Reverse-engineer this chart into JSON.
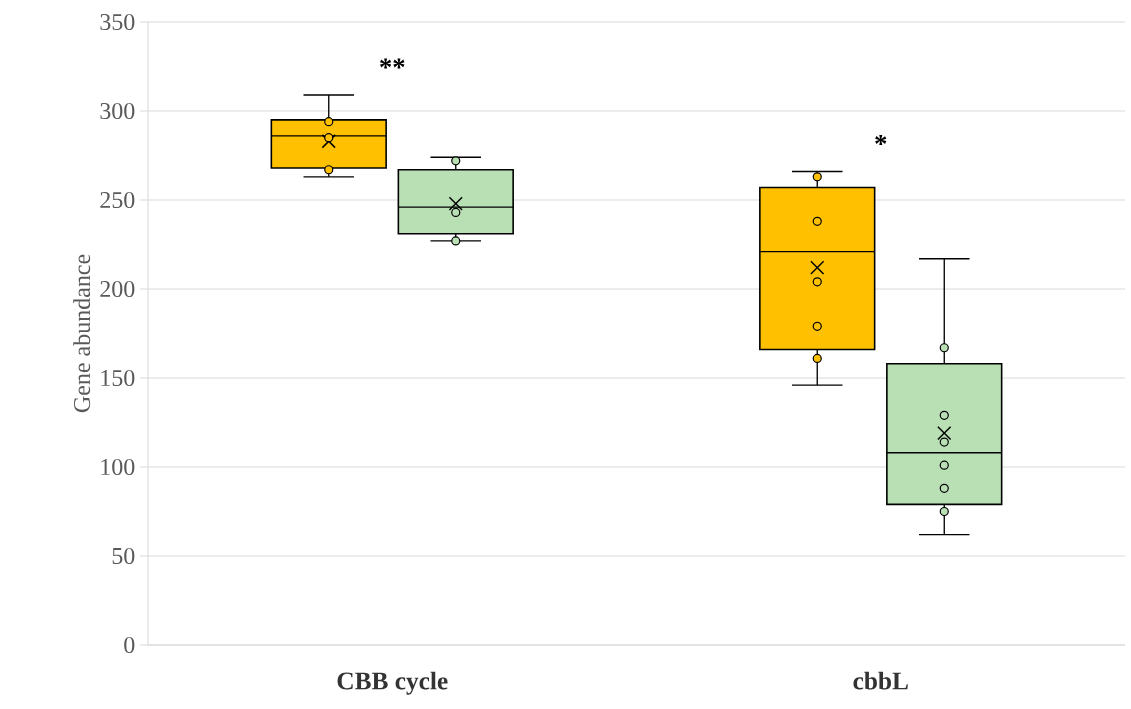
{
  "chart_data": {
    "type": "box",
    "ylabel": "Gene abundance",
    "categories": [
      "CBB cycle",
      "cbbL"
    ],
    "ylim": [
      0,
      350
    ],
    "yticks": [
      0,
      50,
      100,
      150,
      200,
      250,
      300,
      350
    ],
    "grid": "y",
    "annotations": [
      "**",
      "*"
    ],
    "series": [
      {
        "color": "#ffc000",
        "boxes": [
          {
            "low": 263,
            "q1": 268,
            "median": 286,
            "q3": 295,
            "high": 309,
            "mean": 283,
            "outliers": [
              294,
              285,
              267
            ]
          },
          {
            "low": 146,
            "q1": 166,
            "median": 221,
            "q3": 257,
            "high": 266,
            "mean": 212,
            "outliers": [
              263,
              238,
              204,
              179,
              161
            ]
          }
        ]
      },
      {
        "color": "#b9e0b4",
        "boxes": [
          {
            "low": 227,
            "q1": 231,
            "median": 246,
            "q3": 267,
            "high": 274,
            "mean": 248,
            "outliers": [
              272,
              243,
              227
            ]
          },
          {
            "low": 62,
            "q1": 79,
            "median": 108,
            "q3": 158,
            "high": 217,
            "mean": 119,
            "outliers": [
              167,
              129,
              114,
              101,
              88,
              75
            ]
          }
        ]
      }
    ]
  }
}
